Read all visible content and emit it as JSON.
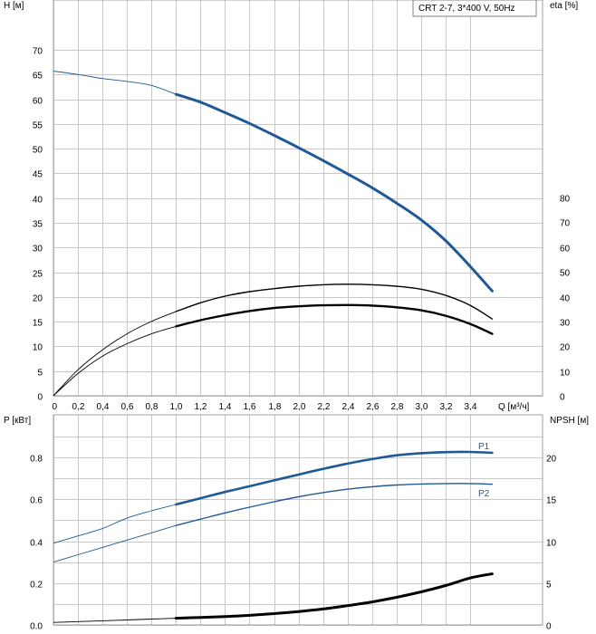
{
  "chart_data": [
    {
      "type": "line",
      "title": "CRT 2-7, 3*400 V, 50Hz",
      "xlabel": "Q [м³/ч]",
      "ylabel": "H [м]",
      "ylabel_right": "eta [%]",
      "xlim": [
        0,
        3.6
      ],
      "ylim": [
        0,
        75
      ],
      "ylim_right": [
        0,
        150
      ],
      "x_ticks": [
        "0",
        "0,2",
        "0,4",
        "0,6",
        "0,8",
        "1,0",
        "1,2",
        "1,4",
        "1,6",
        "1,8",
        "2,0",
        "2,2",
        "2,4",
        "2,6",
        "2,8",
        "3,0",
        "3,2",
        "3,4"
      ],
      "y_ticks": [
        "0",
        "5",
        "10",
        "15",
        "20",
        "25",
        "30",
        "35",
        "40",
        "45",
        "50",
        "55",
        "60",
        "65",
        "70"
      ],
      "y_ticks_right": [
        "0",
        "10",
        "20",
        "30",
        "40",
        "50",
        "60",
        "70",
        "80"
      ],
      "grid": true,
      "series": [
        {
          "key": "H",
          "axis": "left",
          "color": "#1f5a96",
          "thin_until": 1.0,
          "thick": 3,
          "x": [
            0,
            0.2,
            0.4,
            0.6,
            0.8,
            1.0,
            1.2,
            1.4,
            1.6,
            1.8,
            2.0,
            2.2,
            2.4,
            2.6,
            2.8,
            3.0,
            3.2,
            3.4,
            3.58
          ],
          "y": [
            65.7,
            65.0,
            64.2,
            63.6,
            62.8,
            61.0,
            59.4,
            57.3,
            55.1,
            52.7,
            50.2,
            47.6,
            44.9,
            42.1,
            39.0,
            35.6,
            31.4,
            26.2,
            21.2
          ]
        },
        {
          "key": "eta_upper",
          "axis": "right",
          "color": "#000000",
          "thin_until": 1.0,
          "thick": 1.4,
          "x": [
            0,
            0.2,
            0.4,
            0.6,
            0.8,
            1.0,
            1.2,
            1.4,
            1.6,
            1.8,
            2.0,
            2.2,
            2.4,
            2.6,
            2.8,
            3.0,
            3.2,
            3.4,
            3.58
          ],
          "y": [
            0,
            10.5,
            18.5,
            25,
            30,
            34,
            37.5,
            40.2,
            42,
            43.2,
            44.2,
            44.8,
            45,
            44.8,
            44.2,
            43,
            40.5,
            36.5,
            31
          ]
        },
        {
          "key": "eta_lower",
          "axis": "right",
          "color": "#000000",
          "thin_until": 1.0,
          "thick": 2.4,
          "x": [
            0,
            0.2,
            0.4,
            0.6,
            0.8,
            1.0,
            1.2,
            1.4,
            1.6,
            1.8,
            2.0,
            2.2,
            2.4,
            2.6,
            2.8,
            3.0,
            3.2,
            3.4,
            3.58
          ],
          "y": [
            0,
            9,
            16,
            21,
            25,
            28,
            30.5,
            32.5,
            34.2,
            35.4,
            36.1,
            36.5,
            36.6,
            36.4,
            35.7,
            34.5,
            32.3,
            29,
            25
          ]
        }
      ]
    },
    {
      "type": "line",
      "ylabel": "P [кВт]",
      "ylabel_right": "NPSH [м]",
      "xlim": [
        0,
        3.6
      ],
      "ylim": [
        0,
        0.9
      ],
      "ylim_right": [
        0,
        22.5
      ],
      "y_ticks": [
        "0.0",
        "0.2",
        "0.4",
        "0.6",
        "0.8"
      ],
      "y_ticks_right": [
        "0",
        "5",
        "10",
        "15",
        "20"
      ],
      "grid": true,
      "series": [
        {
          "key": "P1",
          "name": "P1",
          "axis": "left",
          "color": "#1f5a96",
          "thin_until": 1.0,
          "thick": 2.6,
          "x": [
            0,
            0.2,
            0.4,
            0.6,
            0.8,
            1.0,
            1.2,
            1.4,
            1.6,
            1.8,
            2.0,
            2.2,
            2.4,
            2.6,
            2.8,
            3.0,
            3.2,
            3.4,
            3.58
          ],
          "y": [
            0.39,
            0.425,
            0.46,
            0.51,
            0.545,
            0.575,
            0.605,
            0.635,
            0.662,
            0.69,
            0.718,
            0.745,
            0.77,
            0.792,
            0.81,
            0.82,
            0.825,
            0.826,
            0.822
          ]
        },
        {
          "key": "P2",
          "name": "P2",
          "axis": "left",
          "color": "#1f5a96",
          "thin_until": 1.0,
          "thick": 1.4,
          "x": [
            0,
            0.2,
            0.4,
            0.6,
            0.8,
            1.0,
            1.2,
            1.4,
            1.6,
            1.8,
            2.0,
            2.2,
            2.4,
            2.6,
            2.8,
            3.0,
            3.2,
            3.4,
            3.58
          ],
          "y": [
            0.3,
            0.335,
            0.37,
            0.405,
            0.44,
            0.475,
            0.505,
            0.535,
            0.562,
            0.588,
            0.612,
            0.632,
            0.648,
            0.66,
            0.668,
            0.673,
            0.675,
            0.675,
            0.672
          ]
        },
        {
          "key": "NPSH",
          "axis": "right",
          "color": "#000000",
          "thin_until": 1.0,
          "thick": 3,
          "x": [
            0,
            0.2,
            0.4,
            0.6,
            0.8,
            1.0,
            1.2,
            1.4,
            1.6,
            1.8,
            2.0,
            2.2,
            2.4,
            2.6,
            2.8,
            3.0,
            3.2,
            3.4,
            3.58
          ],
          "y": [
            0.3,
            0.4,
            0.5,
            0.6,
            0.7,
            0.8,
            0.9,
            1.0,
            1.15,
            1.35,
            1.6,
            1.9,
            2.3,
            2.75,
            3.3,
            3.95,
            4.7,
            5.6,
            6.1
          ]
        }
      ]
    }
  ]
}
